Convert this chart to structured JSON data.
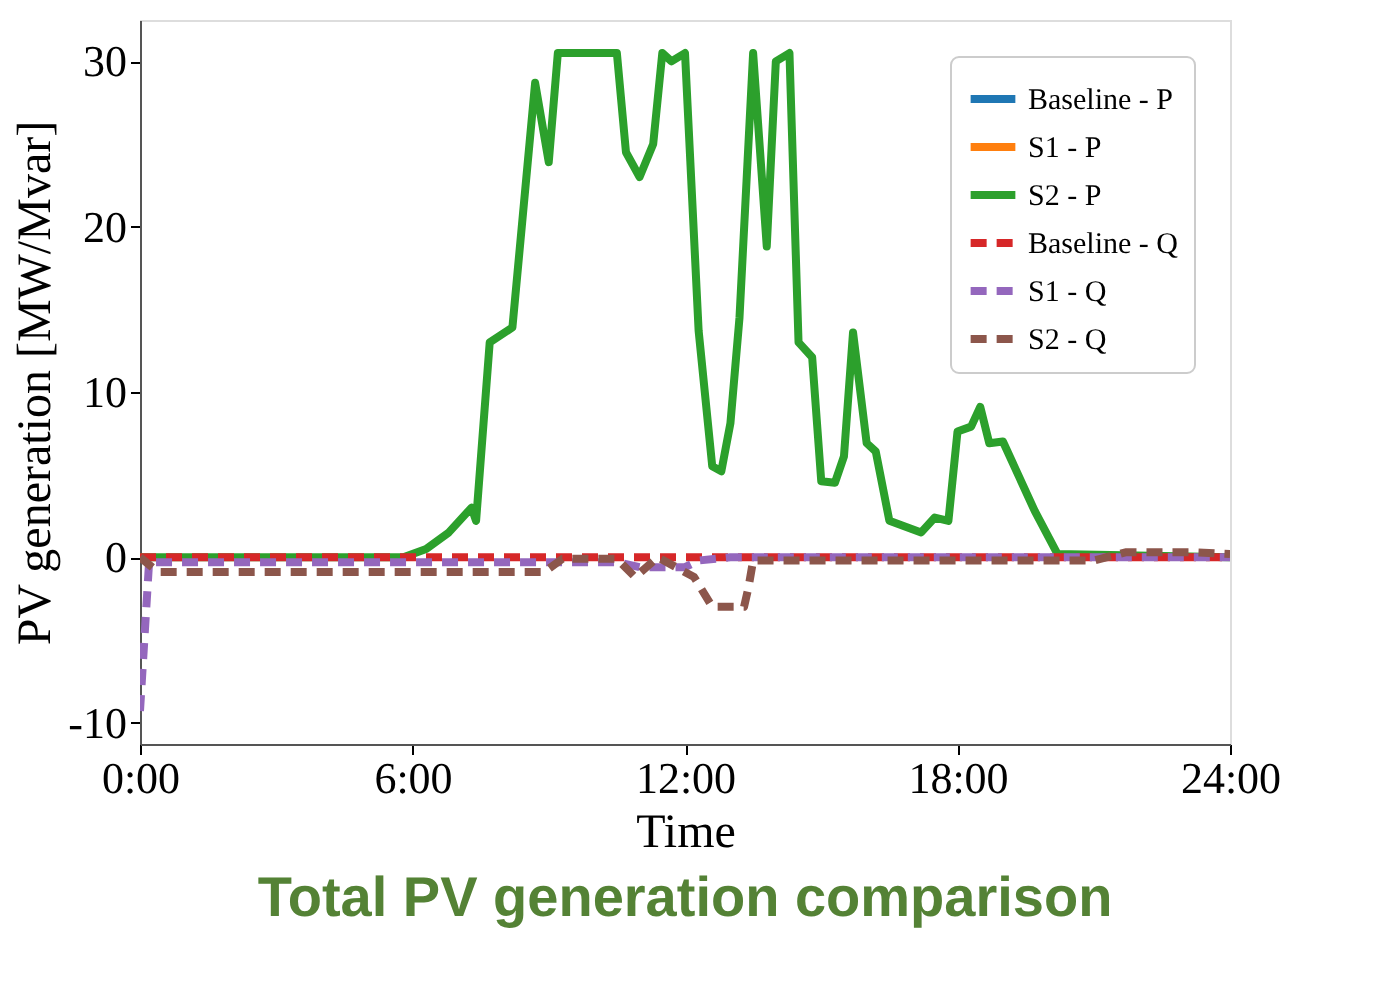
{
  "chart_data": {
    "type": "line",
    "title": "Total PV generation comparison",
    "xlabel": "Time",
    "ylabel": "PV generation [MW/Mvar]",
    "xlim": [
      0,
      24
    ],
    "ylim": [
      -11.3,
      32.5
    ],
    "xticks": [
      {
        "value": 0,
        "label": "0:00"
      },
      {
        "value": 6,
        "label": "6:00"
      },
      {
        "value": 12,
        "label": "12:00"
      },
      {
        "value": 18,
        "label": "18:00"
      },
      {
        "value": 24,
        "label": "24:00"
      }
    ],
    "yticks": [
      -10,
      0,
      10,
      20,
      30
    ],
    "grid": false,
    "legend": "top right",
    "series": [
      {
        "name": "Baseline - P",
        "color": "#1f77b4",
        "line_style": "solid"
      },
      {
        "name": "S1 - P",
        "color": "#ff7f0e",
        "line_style": "solid"
      },
      {
        "name": "S2 - P",
        "color": "#2ca02c",
        "line_style": "solid",
        "x": [
          0,
          5.8,
          6.3,
          6.8,
          7.3,
          7.4,
          7.7,
          8.2,
          8.7,
          9.0,
          9.2,
          10.5,
          10.7,
          11.0,
          11.3,
          11.5,
          11.7,
          12.0,
          12.3,
          12.6,
          12.8,
          13.0,
          13.2,
          13.5,
          13.8,
          14.0,
          14.3,
          14.5,
          14.8,
          15.0,
          15.3,
          15.5,
          15.7,
          16.0,
          16.2,
          16.5,
          17.2,
          17.5,
          17.8,
          18.0,
          18.3,
          18.5,
          18.7,
          19.0,
          19.7,
          20.2,
          24
        ],
        "values": [
          0,
          0,
          0.5,
          1.5,
          3,
          2.2,
          13,
          13.9,
          28.7,
          23.9,
          30.5,
          30.5,
          24.5,
          23,
          25,
          30.5,
          30,
          30.5,
          13.7,
          5.5,
          5.2,
          8.1,
          14.5,
          30.5,
          18.8,
          30,
          30.5,
          13,
          12.1,
          4.6,
          4.5,
          6.1,
          13.6,
          6.9,
          6.4,
          2.2,
          1.5,
          2.4,
          2.2,
          7.6,
          7.9,
          9.1,
          6.9,
          7.0,
          2.8,
          0.2,
          0
        ]
      },
      {
        "name": "Baseline - Q",
        "color": "#d62728",
        "line_style": "dashed",
        "x": [
          0,
          24
        ],
        "values": [
          0,
          0
        ]
      },
      {
        "name": "S1 - Q",
        "color": "#9467bd",
        "line_style": "dashed",
        "x": [
          0,
          0.2,
          6,
          10.5,
          11.0,
          12.0,
          12.3,
          13.0,
          24
        ],
        "values": [
          -9.3,
          -0.3,
          -0.3,
          -0.3,
          -0.6,
          -0.6,
          -0.2,
          0,
          0
        ]
      },
      {
        "name": "S2 - Q",
        "color": "#8c564b",
        "line_style": "dashed",
        "x": [
          0,
          0.4,
          8.9,
          9.3,
          10.5,
          10.9,
          11.4,
          12.2,
          12.6,
          13.3,
          13.4,
          13.5,
          20.3,
          21.0,
          21.7,
          22.5,
          23.2,
          24
        ],
        "values": [
          0,
          -0.9,
          -0.9,
          -0.1,
          -0.1,
          -1.2,
          0,
          -1.2,
          -3.0,
          -3.0,
          -1.8,
          -0.2,
          -0.2,
          -0.2,
          0.3,
          0.3,
          0.3,
          0.2
        ]
      }
    ]
  }
}
